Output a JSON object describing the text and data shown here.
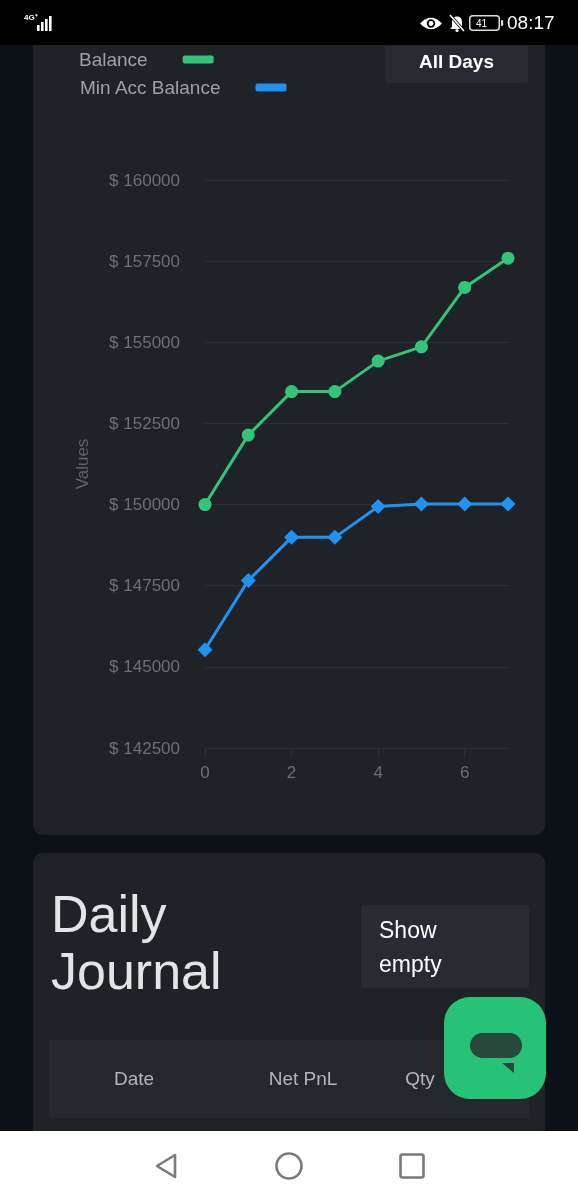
{
  "chart_data": [
    {
      "type": "line",
      "x": [
        0,
        1,
        2,
        3,
        4,
        5,
        6,
        7
      ],
      "series": [
        {
          "name": "Balance",
          "color": "#33c47a",
          "marker": "circle",
          "values": [
            150000,
            152140,
            153480,
            153480,
            154420,
            154860,
            156690,
            157590
          ]
        },
        {
          "name": "Min Acc Balance",
          "color": "#2192f2",
          "marker": "diamond",
          "values": [
            145530,
            147660,
            148990,
            148990,
            149940,
            150020,
            150020,
            150020
          ]
        }
      ],
      "xlim": [
        0,
        7
      ],
      "xticks": [
        0,
        2,
        4,
        6
      ],
      "ylim": [
        142500,
        160000
      ],
      "yticks": [
        {
          "value": 142500,
          "label": "$ 142500"
        },
        {
          "value": 145000,
          "label": "$ 145000"
        },
        {
          "value": 147500,
          "label": "$ 147500"
        },
        {
          "value": 150000,
          "label": "$ 150000"
        },
        {
          "value": 152500,
          "label": "$ 152500"
        },
        {
          "value": 155000,
          "label": "$ 155000"
        },
        {
          "value": 157500,
          "label": "$ 157500"
        },
        {
          "value": 160000,
          "label": "$ 160000"
        }
      ],
      "ylabel": "Values",
      "grid": "y",
      "legend": "top left",
      "annotations": [
        "4G⁺",
        "41",
        "08:17",
        "All Days"
      ]
    },
    {
      "type": "other",
      "title": "Daily Journal",
      "annotations": [
        "Show empty",
        "Date",
        "Net PnL",
        "Qty"
      ]
    }
  ]
}
